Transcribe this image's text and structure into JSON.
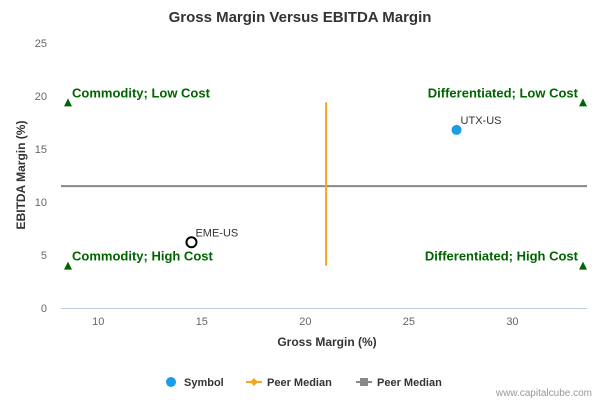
{
  "chart_data": {
    "type": "scatter",
    "title": "Gross Margin Versus EBITDA Margin",
    "xlabel": "Gross Margin (%)",
    "ylabel": "EBITDA Margin (%)",
    "xlim": [
      8.2,
      33.6
    ],
    "ylim": [
      0,
      25
    ],
    "x_ticks": [
      10,
      15,
      20,
      25,
      30
    ],
    "y_ticks": [
      0,
      5,
      10,
      15,
      20,
      25
    ],
    "points": [
      {
        "label": "UTX-US",
        "x": 27.3,
        "y": 16.8,
        "color": "#1a9ce6",
        "style": "filled"
      },
      {
        "label": "EME-US",
        "x": 14.5,
        "y": 6.2,
        "color": "#000000",
        "style": "hollow"
      }
    ],
    "peer_median_x": {
      "value": 21.0,
      "y_range": [
        4.0,
        19.4
      ],
      "color": "#f5a623"
    },
    "peer_median_y": {
      "value": 11.5,
      "color": "#888888"
    },
    "quadrants": [
      {
        "text": "Commodity; Low Cost",
        "x": 8.2,
        "y": 19.4,
        "side": "left"
      },
      {
        "text": "Differentiated; Low Cost",
        "x": 33.6,
        "y": 19.4,
        "side": "right"
      },
      {
        "text": "Commodity; High Cost",
        "x": 8.2,
        "y": 4.0,
        "side": "left"
      },
      {
        "text": "Differentiated; High Cost",
        "x": 33.6,
        "y": 4.0,
        "side": "right"
      }
    ],
    "marker_color": "#006400",
    "grid": false,
    "legend": {
      "placement": "bottom-center",
      "items": [
        {
          "name": "Symbol",
          "kind": "circle",
          "color": "#1a9ce6"
        },
        {
          "name": "Peer Median",
          "kind": "line-diamond",
          "color": "#f5a623"
        },
        {
          "name": "Peer Median",
          "kind": "line-square",
          "color": "#888888"
        }
      ]
    },
    "credit": "www.capitalcube.com"
  }
}
